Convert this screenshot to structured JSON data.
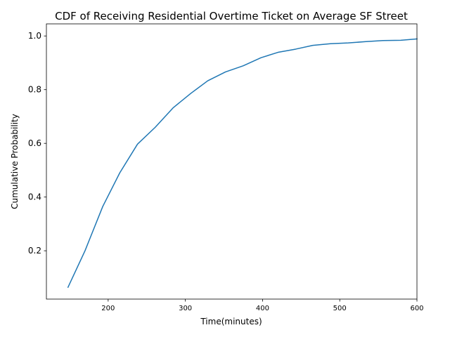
{
  "chart_data": {
    "type": "line",
    "title": "CDF of Receiving Residential Overtime Ticket on Average SF Street",
    "xlabel": "Time(minutes)",
    "ylabel": "Cumulative Probability",
    "xlim": [
      120,
      600
    ],
    "ylim": [
      0.02,
      1.045
    ],
    "x_ticks": [
      200,
      300,
      400,
      500,
      600
    ],
    "y_ticks": [
      0.2,
      0.4,
      0.6,
      0.8,
      1.0
    ],
    "x_tick_labels": [
      "200",
      "300",
      "400",
      "500",
      "600"
    ],
    "y_tick_labels": [
      "0.2",
      "0.4",
      "0.6",
      "0.8",
      "1.0"
    ],
    "grid": false,
    "series": [
      {
        "color": "#1f77b4",
        "x": [
          148,
          170,
          193,
          215,
          238,
          261,
          284,
          307,
          329,
          352,
          375,
          398,
          420,
          443,
          465,
          488,
          511,
          534,
          556,
          579,
          600
        ],
        "y": [
          0.064,
          0.2,
          0.365,
          0.49,
          0.597,
          0.66,
          0.732,
          0.786,
          0.833,
          0.866,
          0.889,
          0.919,
          0.939,
          0.951,
          0.965,
          0.971,
          0.974,
          0.979,
          0.983,
          0.984,
          0.989
        ]
      }
    ]
  }
}
